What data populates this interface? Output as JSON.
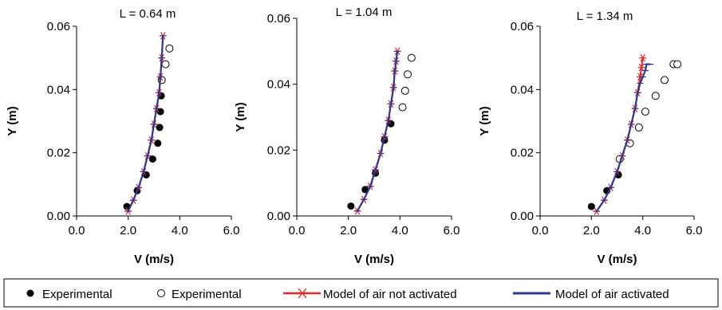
{
  "legend": {
    "items": [
      {
        "label": "Experimental",
        "marker": "filled-circle"
      },
      {
        "label": "Experimental",
        "marker": "open-circle"
      },
      {
        "label": "Model of air not activated",
        "marker": "red-line-asterisk"
      },
      {
        "label": "Model of air activated",
        "marker": "blue-line"
      }
    ]
  },
  "colors": {
    "model_not_activated": "#e8262a",
    "model_activated": "#2b3990",
    "experimental": "#000000"
  },
  "chart_data": [
    {
      "type": "scatter",
      "title": "L = 0.64 m",
      "xlabel": "V (m/s)",
      "ylabel": "Y (m)",
      "xlim": [
        0,
        6
      ],
      "ylim": [
        0,
        0.06
      ],
      "xticks": [
        "0.0",
        "2.0",
        "4.0",
        "6.0"
      ],
      "yticks": [
        "0.00",
        "0.02",
        "0.04",
        "0.06"
      ],
      "series": [
        {
          "name": "Experimental",
          "style": "filled",
          "x": [
            1.95,
            2.35,
            2.7,
            2.95,
            3.15,
            3.22,
            3.25,
            3.28,
            3.3
          ],
          "y": [
            0.003,
            0.008,
            0.013,
            0.018,
            0.023,
            0.028,
            0.033,
            0.038,
            0.043
          ]
        },
        {
          "name": "Experimental",
          "style": "open",
          "x": [
            3.3,
            3.45,
            3.6
          ],
          "y": [
            0.043,
            0.048,
            0.053
          ]
        },
        {
          "name": "Model of air not activated",
          "x": [
            2.0,
            2.2,
            2.4,
            2.6,
            2.75,
            2.9,
            3.0,
            3.1,
            3.2,
            3.25,
            3.3,
            3.35
          ],
          "y": [
            0.0015,
            0.005,
            0.009,
            0.014,
            0.019,
            0.024,
            0.029,
            0.034,
            0.039,
            0.044,
            0.05,
            0.057
          ]
        },
        {
          "name": "Model of air activated",
          "x": [
            2.0,
            2.2,
            2.4,
            2.6,
            2.75,
            2.9,
            3.0,
            3.1,
            3.2,
            3.25,
            3.3,
            3.35
          ],
          "y": [
            0.0015,
            0.005,
            0.009,
            0.014,
            0.019,
            0.024,
            0.029,
            0.034,
            0.039,
            0.044,
            0.05,
            0.057
          ]
        }
      ]
    },
    {
      "type": "scatter",
      "title": "L = 1.04 m",
      "xlabel": "V (m/s)",
      "ylabel": "Y (m)",
      "xlim": [
        0,
        6
      ],
      "ylim": [
        0,
        0.06
      ],
      "xticks": [
        "0.0",
        "2.0",
        "4.0",
        "6.0"
      ],
      "yticks": [
        "0.00",
        "0.02",
        "0.04",
        "0.06"
      ],
      "series": [
        {
          "name": "Experimental",
          "style": "filled",
          "x": [
            2.1,
            2.65,
            3.05,
            3.4,
            3.65
          ],
          "y": [
            0.003,
            0.008,
            0.013,
            0.023,
            0.028
          ]
        },
        {
          "name": "Experimental",
          "style": "open",
          "x": [
            4.1,
            4.2,
            4.3,
            4.45
          ],
          "y": [
            0.033,
            0.038,
            0.043,
            0.048
          ]
        },
        {
          "name": "Model of air not activated",
          "x": [
            2.35,
            2.6,
            2.85,
            3.05,
            3.25,
            3.4,
            3.55,
            3.65,
            3.75,
            3.8,
            3.85,
            3.9
          ],
          "y": [
            0.0015,
            0.005,
            0.009,
            0.014,
            0.019,
            0.024,
            0.029,
            0.034,
            0.039,
            0.044,
            0.047,
            0.05
          ]
        },
        {
          "name": "Model of air activated",
          "x": [
            2.35,
            2.6,
            2.85,
            3.05,
            3.25,
            3.4,
            3.55,
            3.65,
            3.75,
            3.8,
            3.85,
            3.9
          ],
          "y": [
            0.0015,
            0.005,
            0.009,
            0.014,
            0.019,
            0.024,
            0.029,
            0.034,
            0.039,
            0.044,
            0.047,
            0.05
          ]
        }
      ]
    },
    {
      "type": "scatter",
      "title": "L = 1.34 m",
      "xlabel": "V (m/s)",
      "ylabel": "Y (m)",
      "xlim": [
        0,
        6
      ],
      "ylim": [
        0,
        0.06
      ],
      "xticks": [
        "0.0",
        "2.0",
        "4.0",
        "6.0"
      ],
      "yticks": [
        "0.00",
        "0.02",
        "0.04",
        "0.06"
      ],
      "series": [
        {
          "name": "Experimental",
          "style": "filled",
          "x": [
            2.0,
            2.6,
            3.05
          ],
          "y": [
            0.003,
            0.008,
            0.013
          ]
        },
        {
          "name": "Experimental",
          "style": "open",
          "x": [
            3.1,
            3.5,
            3.85,
            4.1,
            4.5,
            4.85,
            5.2,
            5.35
          ],
          "y": [
            0.018,
            0.023,
            0.028,
            0.033,
            0.038,
            0.043,
            0.048,
            0.048
          ]
        },
        {
          "name": "Model of air not activated",
          "x": [
            2.2,
            2.5,
            2.75,
            3.0,
            3.2,
            3.4,
            3.55,
            3.7,
            3.8,
            3.9,
            3.95,
            4.0
          ],
          "y": [
            0.0015,
            0.005,
            0.009,
            0.014,
            0.019,
            0.024,
            0.029,
            0.034,
            0.039,
            0.044,
            0.047,
            0.05
          ]
        },
        {
          "name": "Model of air activated",
          "x": [
            2.2,
            2.5,
            2.75,
            3.0,
            3.2,
            3.4,
            3.55,
            3.7,
            3.8,
            3.9,
            4.0,
            4.1,
            4.15,
            4.3
          ],
          "y": [
            0.0015,
            0.005,
            0.009,
            0.014,
            0.019,
            0.024,
            0.029,
            0.034,
            0.039,
            0.042,
            0.044,
            0.046,
            0.048,
            0.048
          ]
        }
      ]
    }
  ]
}
